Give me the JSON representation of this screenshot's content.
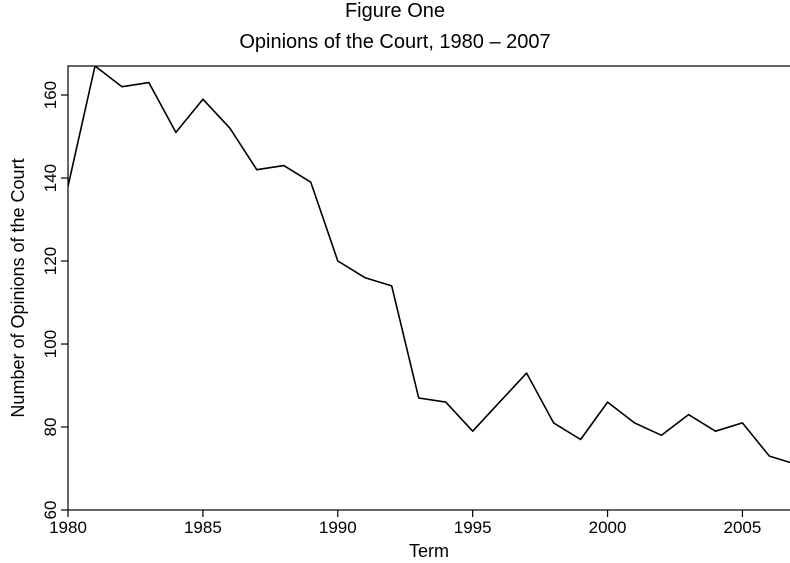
{
  "chart_data": {
    "type": "line",
    "title": "Figure One",
    "subtitle": "Opinions of the Court, 1980 – 2007",
    "xlabel": "Term",
    "ylabel": "Number of Opinions of the Court",
    "xlim": [
      1980,
      2006.8
    ],
    "ylim": [
      60,
      167
    ],
    "x_ticks": [
      1980,
      1985,
      1990,
      1995,
      2000,
      2005
    ],
    "y_ticks": [
      60,
      80,
      100,
      120,
      140,
      160
    ],
    "grid": false,
    "series": [
      {
        "x": [
          1980,
          1981,
          1982,
          1983,
          1984,
          1985,
          1986,
          1987,
          1988,
          1989,
          1990,
          1991,
          1992,
          1993,
          1994,
          1995,
          1996,
          1997,
          1998,
          1999,
          2000,
          2001,
          2002,
          2003,
          2004,
          2005,
          2006,
          2007
        ],
        "values": [
          138,
          167,
          162,
          163,
          151,
          159,
          152,
          142,
          143,
          139,
          120,
          116,
          114,
          87,
          86,
          79,
          86,
          93,
          81,
          77,
          86,
          81,
          78,
          83,
          79,
          81,
          73,
          71
        ],
        "color": "#000000"
      }
    ]
  }
}
